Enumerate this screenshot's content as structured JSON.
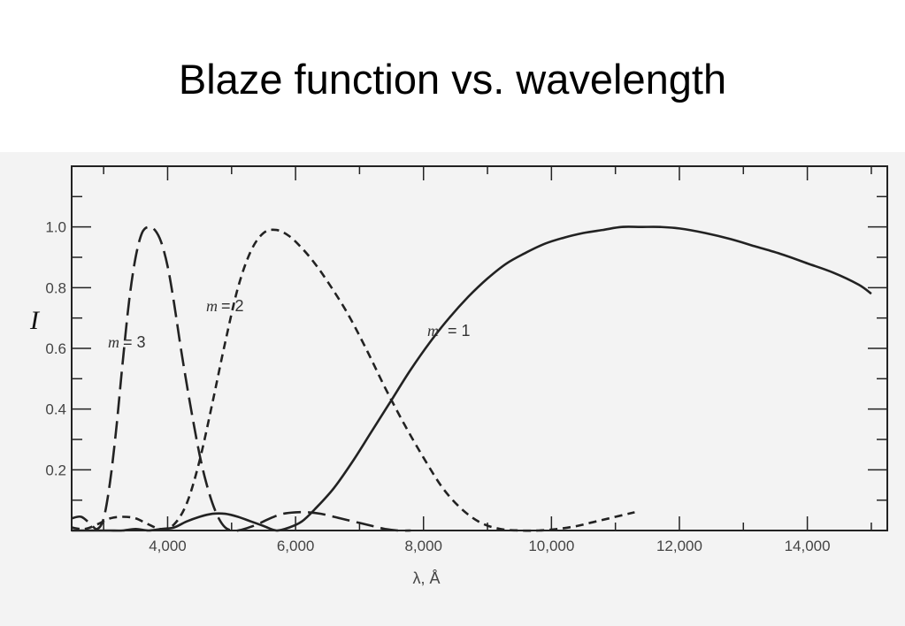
{
  "title": "Blaze function vs. wavelength",
  "chart_data": {
    "type": "line",
    "xlabel": "λ, Å",
    "ylabel": "I",
    "xlim": [
      2500,
      15250
    ],
    "ylim": [
      0,
      1.2
    ],
    "x_ticks": [
      4000,
      6000,
      8000,
      10000,
      12000,
      14000
    ],
    "x_tick_labels": [
      "4,000",
      "6,000",
      "8,000",
      "10,000",
      "12,000",
      "14,000"
    ],
    "y_ticks": [
      0.2,
      0.4,
      0.6,
      0.8,
      1.0
    ],
    "y_tick_labels": [
      "0.2",
      "0.4",
      "0.6",
      "0.8",
      "1.0"
    ],
    "grid": false,
    "legend": "none",
    "series": [
      {
        "name": "m = 1",
        "style": "solid",
        "x": [
          2500,
          2700,
          2900,
          3100,
          3300,
          3500,
          3700,
          3900,
          4100,
          4300,
          4500,
          4700,
          4900,
          5100,
          5300,
          5500,
          5700,
          5900,
          6100,
          6300,
          6600,
          6900,
          7200,
          7500,
          7800,
          8100,
          8400,
          8700,
          9000,
          9300,
          9600,
          9900,
          10200,
          10500,
          10800,
          11100,
          11400,
          11700,
          12000,
          12400,
          12800,
          13200,
          13600,
          14000,
          14400,
          14800,
          15000
        ],
        "values": [
          0.0,
          0.0,
          0.0,
          0.0,
          0.0,
          0.005,
          0.0,
          0.005,
          0.01,
          0.03,
          0.045,
          0.055,
          0.055,
          0.045,
          0.03,
          0.015,
          0.0,
          0.01,
          0.03,
          0.07,
          0.14,
          0.23,
          0.33,
          0.43,
          0.53,
          0.62,
          0.7,
          0.77,
          0.83,
          0.88,
          0.915,
          0.945,
          0.965,
          0.98,
          0.99,
          1.0,
          1.0,
          1.0,
          0.995,
          0.98,
          0.96,
          0.935,
          0.91,
          0.88,
          0.85,
          0.81,
          0.78
        ]
      },
      {
        "name": "m = 2",
        "style": "short-dash",
        "x": [
          2500,
          2700,
          2900,
          3100,
          3300,
          3500,
          3700,
          3900,
          4100,
          4300,
          4500,
          4700,
          4900,
          5100,
          5300,
          5500,
          5700,
          5900,
          6100,
          6300,
          6500,
          6800,
          7100,
          7400,
          7700,
          8000,
          8300,
          8600,
          8900,
          9200,
          9500,
          9800,
          10100,
          10400,
          10700,
          11000,
          11300
        ],
        "values": [
          0.01,
          0.005,
          0.02,
          0.04,
          0.045,
          0.04,
          0.02,
          0.005,
          0.02,
          0.09,
          0.23,
          0.42,
          0.62,
          0.8,
          0.92,
          0.98,
          0.99,
          0.97,
          0.93,
          0.88,
          0.82,
          0.72,
          0.6,
          0.47,
          0.35,
          0.24,
          0.14,
          0.07,
          0.025,
          0.005,
          0.0,
          0.0,
          0.005,
          0.015,
          0.03,
          0.045,
          0.06
        ]
      },
      {
        "name": "m = 3",
        "style": "long-dash",
        "x": [
          2500,
          2650,
          2800,
          2900,
          3000,
          3100,
          3200,
          3300,
          3400,
          3500,
          3600,
          3700,
          3800,
          3900,
          4000,
          4100,
          4200,
          4300,
          4400,
          4500,
          4600,
          4700,
          4800,
          4900,
          5000,
          5100,
          5200,
          5400,
          5600,
          5800,
          6000,
          6200,
          6400,
          6600,
          6800,
          7000,
          7200,
          7400,
          7600,
          7800
        ],
        "values": [
          0.04,
          0.045,
          0.02,
          0.005,
          0.04,
          0.16,
          0.34,
          0.56,
          0.76,
          0.9,
          0.98,
          1.0,
          0.99,
          0.95,
          0.87,
          0.75,
          0.61,
          0.48,
          0.36,
          0.25,
          0.16,
          0.09,
          0.04,
          0.01,
          0.0,
          0.0,
          0.005,
          0.02,
          0.04,
          0.055,
          0.06,
          0.06,
          0.055,
          0.045,
          0.035,
          0.025,
          0.015,
          0.005,
          0.0,
          0.0
        ]
      }
    ],
    "annotations": [
      {
        "italic": "m",
        "rest": "= 3"
      },
      {
        "italic": "m",
        "rest": "= 2"
      },
      {
        "italic": "m",
        "rest": "= 1"
      }
    ]
  }
}
